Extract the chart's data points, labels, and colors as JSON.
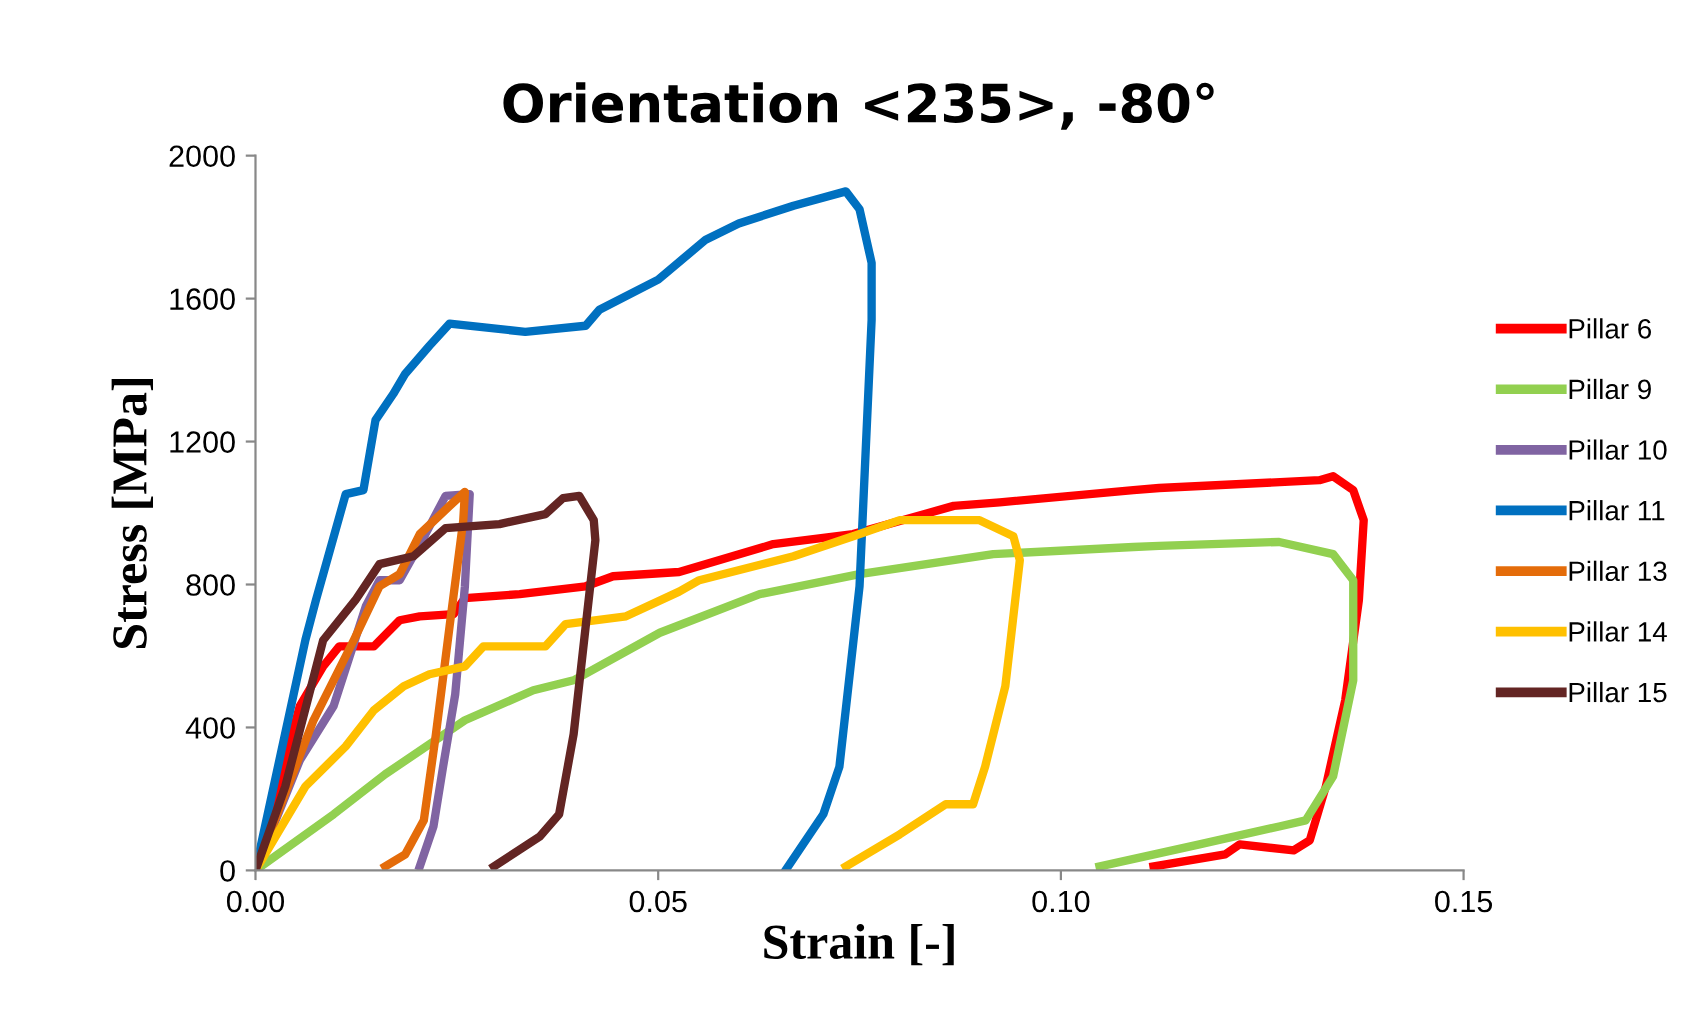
{
  "chart_data": {
    "type": "line",
    "title": "Orientation <235>, -80°",
    "xlabel": "Strain [-]",
    "ylabel": "Stress [MPa]",
    "xlim": [
      0,
      0.15
    ],
    "xticks": [
      {
        "value": 0,
        "label": "0.00"
      },
      {
        "value": 0.05,
        "label": "0.05"
      },
      {
        "value": 0.1,
        "label": "0.10"
      },
      {
        "value": 0.15,
        "label": "0.15"
      }
    ],
    "ylim": [
      0,
      2000
    ],
    "yticks": [
      0,
      400,
      800,
      1200,
      1600,
      2000
    ],
    "grid": false,
    "legend": "right",
    "marker": "none",
    "line_style": "solid",
    "series": [
      {
        "name": "Pillar 6",
        "color": "#ff0000",
        "x": [
          0,
          0.0055,
          0.0084,
          0.0104,
          0.0147,
          0.0179,
          0.0204,
          0.0246,
          0.026,
          0.0328,
          0.041,
          0.0444,
          0.0526,
          0.0643,
          0.0742,
          0.0867,
          0.0924,
          0.109,
          0.1122,
          0.1321,
          0.1338,
          0.1363,
          0.1376,
          0.137,
          0.1353,
          0.1329,
          0.1309,
          0.1289,
          0.1222,
          0.1204,
          0.1115
        ],
        "values": [
          0,
          460,
          571,
          627,
          627,
          700,
          711,
          717,
          762,
          773,
          795,
          823,
          835,
          913,
          941,
          1020,
          1030,
          1064,
          1070,
          1092,
          1103,
          1064,
          980,
          756,
          476,
          235,
          84,
          56,
          73,
          45,
          11
        ]
      },
      {
        "name": "Pillar 9",
        "color": "#92d050",
        "x": [
          0,
          0.0097,
          0.0161,
          0.026,
          0.0345,
          0.0395,
          0.0502,
          0.0626,
          0.075,
          0.0916,
          0.109,
          0.1122,
          0.1271,
          0.1338,
          0.1363,
          0.1363,
          0.1338,
          0.1304,
          0.1271,
          0.1172,
          0.1048
        ],
        "values": [
          0,
          157,
          269,
          420,
          504,
          532,
          665,
          773,
          829,
          885,
          905,
          908,
          919,
          885,
          812,
          532,
          263,
          140,
          123,
          73,
          11
        ]
      },
      {
        "name": "Pillar 10",
        "color": "#8064a2",
        "x": [
          0,
          0.0055,
          0.0097,
          0.0137,
          0.0154,
          0.0179,
          0.0211,
          0.0236,
          0.0266,
          0.026,
          0.0248,
          0.0233,
          0.0221,
          0.0204
        ],
        "values": [
          0,
          308,
          460,
          739,
          812,
          812,
          941,
          1048,
          1053,
          795,
          493,
          291,
          123,
          11
        ]
      },
      {
        "name": "Pillar 11",
        "color": "#0070c0",
        "x": [
          0,
          0.0062,
          0.0075,
          0.0112,
          0.0134,
          0.0149,
          0.0171,
          0.0186,
          0.0216,
          0.0241,
          0.0335,
          0.041,
          0.0427,
          0.05,
          0.0559,
          0.06,
          0.0668,
          0.0733,
          0.075,
          0.0765,
          0.0765,
          0.075,
          0.0725,
          0.0705,
          0.0658
        ],
        "values": [
          0,
          645,
          756,
          1053,
          1064,
          1260,
          1333,
          1390,
          1468,
          1530,
          1507,
          1524,
          1569,
          1653,
          1765,
          1810,
          1860,
          1900,
          1850,
          1700,
          1540,
          795,
          290,
          157,
          0
        ]
      },
      {
        "name": "Pillar 13",
        "color": "#e46c0a",
        "x": [
          0,
          0.0072,
          0.0122,
          0.0154,
          0.0179,
          0.0204,
          0.0241,
          0.026,
          0.0258,
          0.0241,
          0.0224,
          0.0209,
          0.0186,
          0.0161
        ],
        "values": [
          0,
          420,
          644,
          795,
          829,
          941,
          1020,
          1059,
          980,
          683,
          381,
          140,
          45,
          11
        ]
      },
      {
        "name": "Pillar 14",
        "color": "#ffc000",
        "x": [
          0,
          0.0062,
          0.0112,
          0.0147,
          0.0184,
          0.0216,
          0.026,
          0.0283,
          0.036,
          0.0385,
          0.046,
          0.0526,
          0.0551,
          0.0668,
          0.0742,
          0.08,
          0.0899,
          0.0941,
          0.0949,
          0.0931,
          0.0906,
          0.0891,
          0.0857,
          0.08,
          0.0733
        ],
        "values": [
          0,
          235,
          347,
          448,
          515,
          549,
          571,
          627,
          627,
          689,
          711,
          780,
          812,
          879,
          935,
          980,
          980,
          935,
          868,
          515,
          291,
          185,
          185,
          101,
          11
        ]
      },
      {
        "name": "Pillar 15",
        "color": "#632523",
        "x": [
          0,
          0.0037,
          0.0084,
          0.0124,
          0.0154,
          0.0196,
          0.0236,
          0.0303,
          0.036,
          0.0382,
          0.0402,
          0.042,
          0.0422,
          0.041,
          0.0395,
          0.0377,
          0.0353,
          0.0296
        ],
        "values": [
          0,
          235,
          644,
          756,
          857,
          879,
          958,
          969,
          997,
          1042,
          1048,
          980,
          924,
          683,
          381,
          157,
          95,
          11
        ]
      }
    ]
  }
}
